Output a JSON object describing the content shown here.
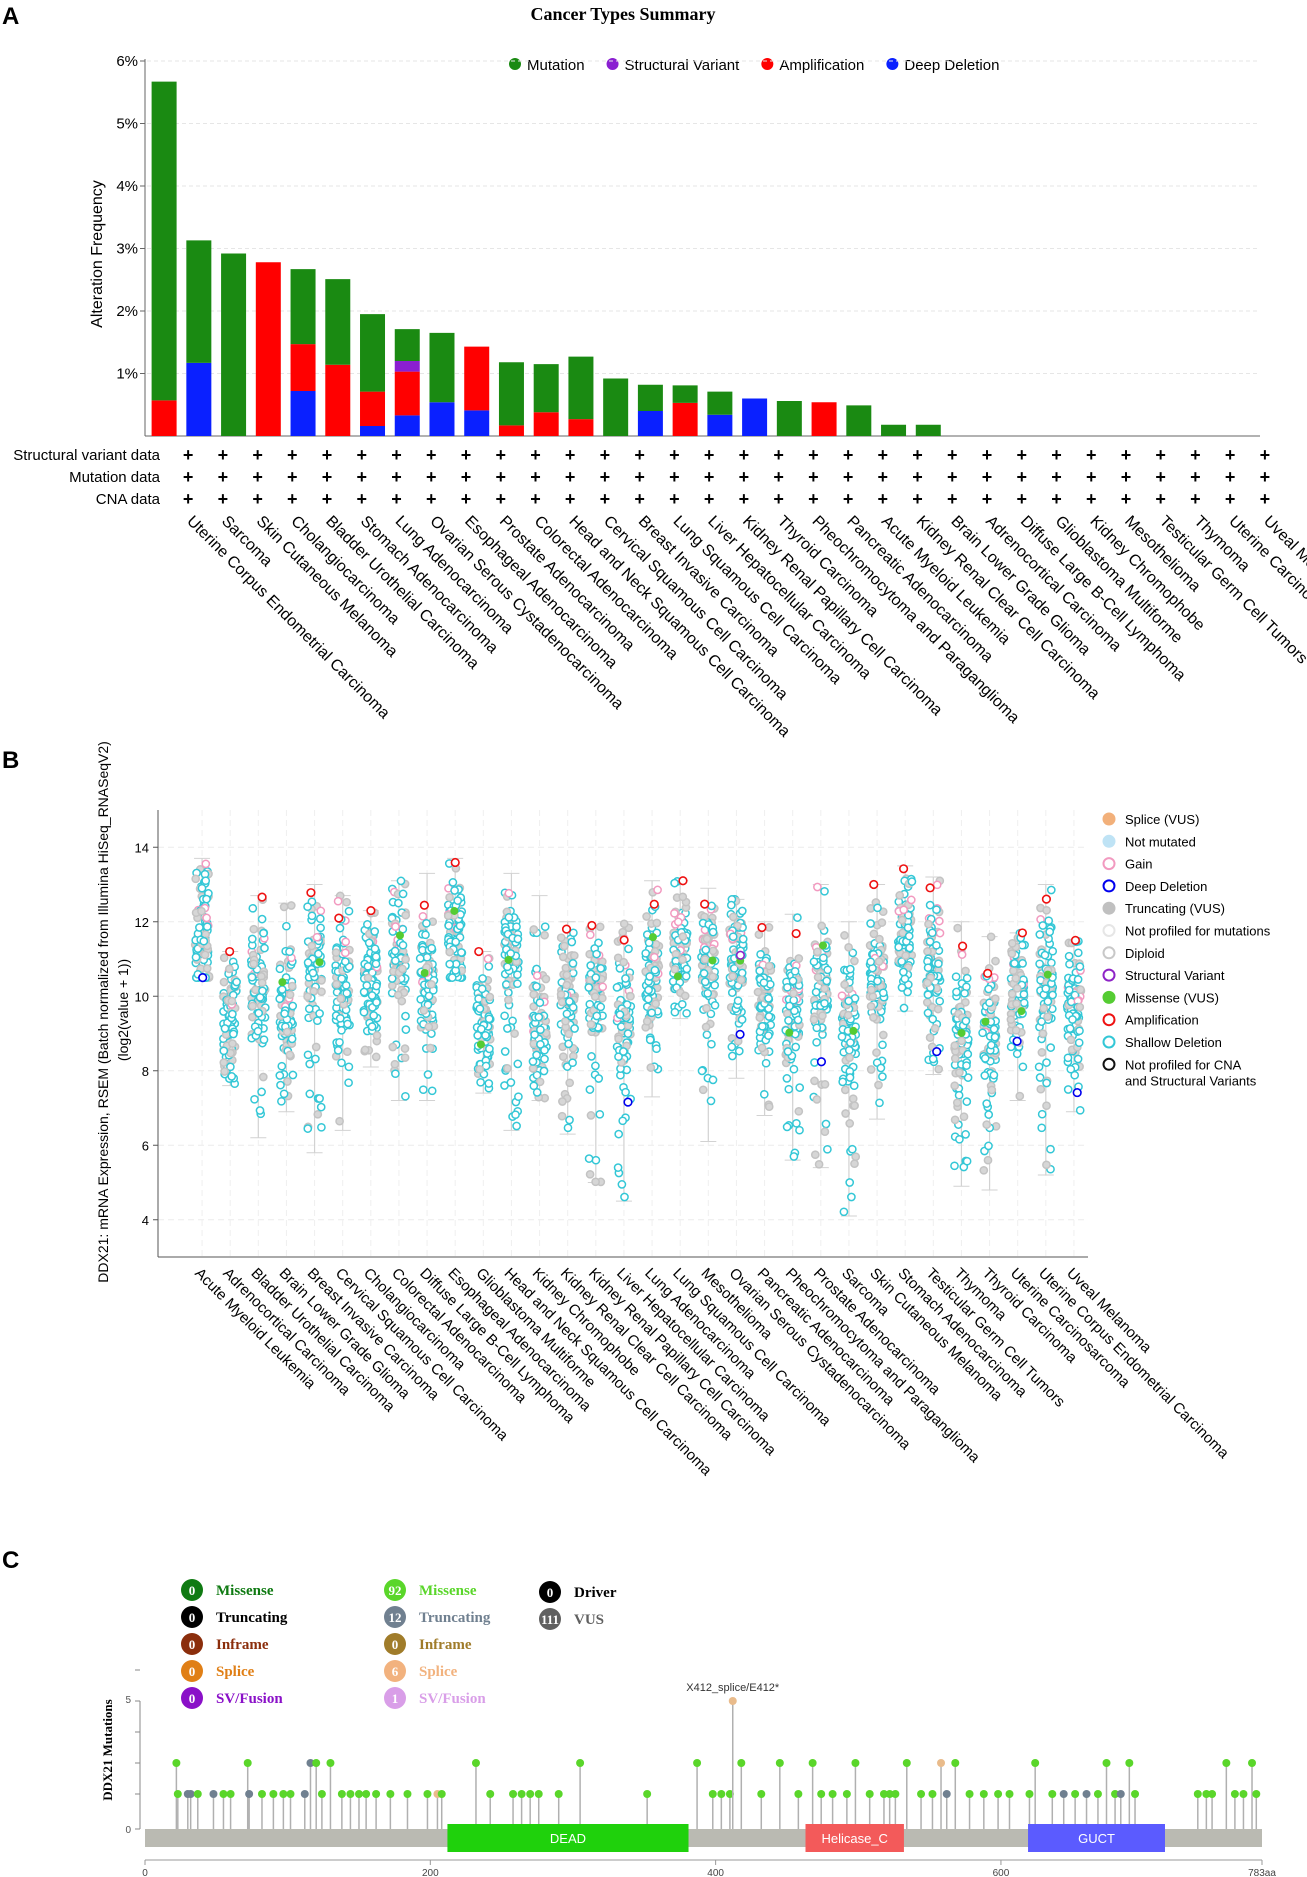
{
  "panels": {
    "a": "A",
    "b": "B",
    "c": "C"
  },
  "chart_data": [
    {
      "type": "bar",
      "title": "Cancer Types Summary",
      "ylabel": "Alteration Frequency",
      "ylim": [
        0,
        6
      ],
      "y_ticks": [
        "1%",
        "2%",
        "3%",
        "4%",
        "5%",
        "6%"
      ],
      "legend": [
        {
          "name": "Mutation",
          "color": "#1a8a12"
        },
        {
          "name": "Structural Variant",
          "color": "#8a1fd1"
        },
        {
          "name": "Amplification",
          "color": "#ff0000"
        },
        {
          "name": "Deep Deletion",
          "color": "#0a20ff"
        }
      ],
      "row_labels": [
        "Structural variant data",
        "Mutation data",
        "CNA data"
      ],
      "row_marker": "+",
      "categories": [
        "Uterine Corpus Endometrial Carcinoma",
        "Sarcoma",
        "Skin Cutaneous Melanoma",
        "Cholangiocarcinoma",
        "Bladder Urothelial Carcinoma",
        "Stomach Adenocarcinoma",
        "Lung Adenocarcinoma",
        "Ovarian Serous Cystadenocarcinoma",
        "Esophageal Adenocarcinoma",
        "Prostate Adenocarcinoma",
        "Colorectal Adenocarcinoma",
        "Head and Neck Squamous Cell Carcinoma",
        "Cervical Squamous Cell Carcinoma",
        "Breast Invasive Carcinoma",
        "Lung Squamous Cell Carcinoma",
        "Liver Hepatocellular Carcinoma",
        "Kidney Renal Papillary Cell Carcinoma",
        "Thyroid Carcinoma",
        "Pheochromocytoma and Paraganglioma",
        "Pancreatic Adenocarcinoma",
        "Acute Myeloid Leukemia",
        "Kidney Renal Clear Cell Carcinoma",
        "Brain Lower Grade Glioma",
        "Adrenocortical Carcinoma",
        "Diffuse Large B-Cell Lymphoma",
        "Glioblastoma Multiforme",
        "Kidney Chromophobe",
        "Mesothelioma",
        "Testicular Germ Cell Tumors",
        "Thymoma",
        "Uterine Carcinosarcoma",
        "Uveal Melanoma"
      ],
      "series": [
        {
          "name": "Deep Deletion",
          "values": [
            0,
            1.17,
            0,
            0,
            0.72,
            0,
            0.16,
            0.33,
            0.54,
            0.41,
            0,
            0,
            0,
            0,
            0.4,
            0,
            0.34,
            0.6,
            0,
            0,
            0,
            0,
            0,
            0,
            0,
            0,
            0,
            0,
            0,
            0,
            0,
            0
          ]
        },
        {
          "name": "Amplification",
          "values": [
            0.57,
            0,
            0,
            2.78,
            0.75,
            1.14,
            0.55,
            0.7,
            0,
            1.02,
            0.17,
            0.38,
            0.27,
            0,
            0,
            0.53,
            0,
            0,
            0,
            0.54,
            0,
            0,
            0,
            0,
            0,
            0,
            0,
            0,
            0,
            0,
            0,
            0
          ]
        },
        {
          "name": "Structural Variant",
          "values": [
            0,
            0,
            0,
            0,
            0,
            0,
            0,
            0.17,
            0,
            0,
            0,
            0,
            0,
            0,
            0,
            0,
            0,
            0,
            0,
            0,
            0,
            0,
            0,
            0,
            0,
            0,
            0,
            0,
            0,
            0,
            0,
            0
          ]
        },
        {
          "name": "Mutation",
          "values": [
            5.1,
            1.96,
            2.92,
            0,
            1.2,
            1.37,
            1.24,
            0.51,
            1.11,
            0,
            1.01,
            0.77,
            1.0,
            0.92,
            0.42,
            0.28,
            0.37,
            0,
            0.56,
            0,
            0.49,
            0.18,
            0.18,
            0,
            0,
            0,
            0,
            0,
            0,
            0,
            0,
            0
          ]
        }
      ]
    },
    {
      "type": "scatter",
      "ylabel": "DDX21: mRNA Expression, RSEM (Batch normalized from Illumina HiSeq_RNASeqV2) (log2(value + 1))",
      "ylim": [
        3,
        15
      ],
      "y_ticks": [
        4,
        6,
        8,
        10,
        12,
        14
      ],
      "categories": [
        "Acute Myeloid Leukemia",
        "Adrenocortical Carcinoma",
        "Bladder Urothelial Carcinoma",
        "Brain Lower Grade Glioma",
        "Breast Invasive Carcinoma",
        "Cervical Squamous Cell Carcinoma",
        "Cholangiocarcinoma",
        "Colorectal Adenocarcinoma",
        "Diffuse Large B-Cell Lymphoma",
        "Esophageal Adenocarcinoma",
        "Glioblastoma Multiforme",
        "Head and Neck Squamous Cell Carcinoma",
        "Kidney Chromophobe",
        "Kidney Renal Clear Cell Carcinoma",
        "Kidney Renal Papillary Cell Carcinoma",
        "Liver Hepatocellular Carcinoma",
        "Lung Adenocarcinoma",
        "Lung Squamous Cell Carcinoma",
        "Mesothelioma",
        "Ovarian Serous Cystadenocarcinoma",
        "Pancreatic Adenocarcinoma",
        "Pheochromocytoma and Paraganglioma",
        "Prostate Adenocarcinoma",
        "Sarcoma",
        "Skin Cutaneous Melanoma",
        "Stomach Adenocarcinoma",
        "Testicular Germ Cell Tumors",
        "Thymoma",
        "Thyroid Carcinoma",
        "Uterine Carcinosarcoma",
        "Uterine Corpus Endometrial Carcinoma",
        "Uveal Melanoma"
      ],
      "medians": [
        11.6,
        9.4,
        10.2,
        9.6,
        10.8,
        10.4,
        10.6,
        11.2,
        10.3,
        11.6,
        9.2,
        11.4,
        9.0,
        10.0,
        10.2,
        9.4,
        10.6,
        11.2,
        10.8,
        11.2,
        10.0,
        9.8,
        10.6,
        9.2,
        10.6,
        11.8,
        10.8,
        9.0,
        9.0,
        10.2,
        10.4,
        9.6
      ],
      "mins": [
        10.5,
        7.6,
        6.2,
        6.9,
        5.8,
        6.4,
        8.1,
        7.2,
        7.2,
        10.5,
        7.4,
        6.4,
        7.2,
        6.3,
        5.0,
        4.5,
        7.3,
        9.4,
        6.1,
        7.8,
        6.8,
        5.6,
        5.4,
        4.1,
        6.7,
        9.6,
        7.9,
        4.9,
        4.8,
        7.2,
        5.2,
        6.9
      ],
      "maxs": [
        13.7,
        11.2,
        12.7,
        12.5,
        13.0,
        12.7,
        12.3,
        13.1,
        13.3,
        13.7,
        11.2,
        13.3,
        12.7,
        12.0,
        11.9,
        12.0,
        13.1,
        13.1,
        12.9,
        12.6,
        12.0,
        12.2,
        13.0,
        12.0,
        13.0,
        13.5,
        13.2,
        12.0,
        11.6,
        11.7,
        13.0,
        11.5
      ],
      "legend": [
        {
          "name": "Splice (VUS)",
          "fill": "#f2b07a",
          "stroke": "#f2b07a"
        },
        {
          "name": "Not mutated",
          "fill": "#bfe3f5",
          "stroke": "#bfe3f5"
        },
        {
          "name": "Gain",
          "fill": "#ffffff",
          "stroke": "#f29ac0"
        },
        {
          "name": "Deep Deletion",
          "fill": "#ffffff",
          "stroke": "#0000ee"
        },
        {
          "name": "Truncating (VUS)",
          "fill": "#c0c0c0",
          "stroke": "#c0c0c0"
        },
        {
          "name": "Not profiled for mutations",
          "fill": "#ffffff",
          "stroke": "#e6e6e6"
        },
        {
          "name": "Diploid",
          "fill": "#ffffff",
          "stroke": "#c8c8c8"
        },
        {
          "name": "Structural Variant",
          "fill": "#ffffff",
          "stroke": "#8e24c6"
        },
        {
          "name": "Missense (VUS)",
          "fill": "#55cc33",
          "stroke": "#55cc33"
        },
        {
          "name": "Amplification",
          "fill": "#ffffff",
          "stroke": "#ee1111"
        },
        {
          "name": "Shallow Deletion",
          "fill": "#ffffff",
          "stroke": "#33c7d6"
        },
        {
          "name": "Not profiled for CNA",
          "name2": "and Structural Variants",
          "fill": "#ffffff",
          "stroke": "#111111"
        }
      ]
    },
    {
      "type": "lollipop",
      "ylabel": "DDX21 Mutations",
      "x_ticks": [
        0,
        200,
        400,
        600
      ],
      "x_end_label": "783aa",
      "protein_length": 783,
      "hotspot_label": "X412_splice/E412*",
      "legend_driver": [
        {
          "count": "0",
          "label": "Missense",
          "color": "#0f7a12"
        },
        {
          "count": "0",
          "label": "Truncating",
          "color": "#000000"
        },
        {
          "count": "0",
          "label": "Inframe",
          "color": "#8b2e0c"
        },
        {
          "count": "0",
          "label": "Splice",
          "color": "#e07f16"
        },
        {
          "count": "0",
          "label": "SV/Fusion",
          "color": "#8a10c8"
        }
      ],
      "legend_vus": [
        {
          "count": "92",
          "label": "Missense",
          "color": "#5ad62a"
        },
        {
          "count": "12",
          "label": "Truncating",
          "color": "#708090"
        },
        {
          "count": "0",
          "label": "Inframe",
          "color": "#a07c2a"
        },
        {
          "count": "6",
          "label": "Splice",
          "color": "#f2b27e"
        },
        {
          "count": "1",
          "label": "SV/Fusion",
          "color": "#d99ee8"
        }
      ],
      "legend_class": [
        {
          "count": "0",
          "label": "Driver",
          "color": "#000000"
        },
        {
          "count": "111",
          "label": "VUS",
          "color": "#606060"
        }
      ],
      "domains": [
        {
          "name": "DEAD",
          "start": 212,
          "end": 381,
          "color": "#1fd10c"
        },
        {
          "name": "Helicase_C",
          "start": 463,
          "end": 532,
          "color": "#f35a5a"
        },
        {
          "name": "GUCT",
          "start": 619,
          "end": 715,
          "color": "#5b5bff"
        }
      ],
      "mutations": [
        {
          "pos": 22,
          "count": 2,
          "type": "missense"
        },
        {
          "pos": 23,
          "count": 1,
          "type": "missense"
        },
        {
          "pos": 30,
          "count": 1,
          "type": "truncating"
        },
        {
          "pos": 32,
          "count": 1,
          "type": "truncating"
        },
        {
          "pos": 37,
          "count": 1,
          "type": "missense"
        },
        {
          "pos": 48,
          "count": 1,
          "type": "truncating"
        },
        {
          "pos": 55,
          "count": 1,
          "type": "missense"
        },
        {
          "pos": 60,
          "count": 1,
          "type": "missense"
        },
        {
          "pos": 72,
          "count": 2,
          "type": "missense"
        },
        {
          "pos": 73,
          "count": 1,
          "type": "truncating"
        },
        {
          "pos": 82,
          "count": 1,
          "type": "missense"
        },
        {
          "pos": 90,
          "count": 1,
          "type": "missense"
        },
        {
          "pos": 97,
          "count": 1,
          "type": "missense"
        },
        {
          "pos": 102,
          "count": 1,
          "type": "missense"
        },
        {
          "pos": 112,
          "count": 1,
          "type": "truncating"
        },
        {
          "pos": 116,
          "count": 2,
          "type": "truncating"
        },
        {
          "pos": 120,
          "count": 2,
          "type": "missense"
        },
        {
          "pos": 124,
          "count": 1,
          "type": "missense"
        },
        {
          "pos": 130,
          "count": 2,
          "type": "missense"
        },
        {
          "pos": 138,
          "count": 1,
          "type": "missense"
        },
        {
          "pos": 144,
          "count": 1,
          "type": "missense"
        },
        {
          "pos": 150,
          "count": 1,
          "type": "missense"
        },
        {
          "pos": 155,
          "count": 1,
          "type": "missense"
        },
        {
          "pos": 162,
          "count": 1,
          "type": "missense"
        },
        {
          "pos": 172,
          "count": 1,
          "type": "missense"
        },
        {
          "pos": 184,
          "count": 1,
          "type": "missense"
        },
        {
          "pos": 198,
          "count": 1,
          "type": "missense"
        },
        {
          "pos": 205,
          "count": 1,
          "type": "splice"
        },
        {
          "pos": 208,
          "count": 1,
          "type": "missense"
        },
        {
          "pos": 232,
          "count": 2,
          "type": "missense"
        },
        {
          "pos": 242,
          "count": 1,
          "type": "missense"
        },
        {
          "pos": 258,
          "count": 1,
          "type": "missense"
        },
        {
          "pos": 264,
          "count": 1,
          "type": "missense"
        },
        {
          "pos": 270,
          "count": 1,
          "type": "missense"
        },
        {
          "pos": 276,
          "count": 1,
          "type": "missense"
        },
        {
          "pos": 290,
          "count": 1,
          "type": "missense"
        },
        {
          "pos": 305,
          "count": 2,
          "type": "missense"
        },
        {
          "pos": 352,
          "count": 1,
          "type": "missense"
        },
        {
          "pos": 387,
          "count": 2,
          "type": "missense"
        },
        {
          "pos": 398,
          "count": 1,
          "type": "missense"
        },
        {
          "pos": 404,
          "count": 1,
          "type": "missense"
        },
        {
          "pos": 410,
          "count": 1,
          "type": "missense"
        },
        {
          "pos": 412,
          "count": 4,
          "type": "splice"
        },
        {
          "pos": 418,
          "count": 2,
          "type": "missense"
        },
        {
          "pos": 432,
          "count": 1,
          "type": "missense"
        },
        {
          "pos": 445,
          "count": 2,
          "type": "missense"
        },
        {
          "pos": 458,
          "count": 1,
          "type": "missense"
        },
        {
          "pos": 468,
          "count": 2,
          "type": "missense"
        },
        {
          "pos": 474,
          "count": 1,
          "type": "missense"
        },
        {
          "pos": 482,
          "count": 1,
          "type": "missense"
        },
        {
          "pos": 492,
          "count": 1,
          "type": "missense"
        },
        {
          "pos": 498,
          "count": 2,
          "type": "missense"
        },
        {
          "pos": 508,
          "count": 1,
          "type": "missense"
        },
        {
          "pos": 518,
          "count": 1,
          "type": "missense"
        },
        {
          "pos": 522,
          "count": 1,
          "type": "missense"
        },
        {
          "pos": 526,
          "count": 1,
          "type": "missense"
        },
        {
          "pos": 534,
          "count": 2,
          "type": "missense"
        },
        {
          "pos": 544,
          "count": 1,
          "type": "missense"
        },
        {
          "pos": 552,
          "count": 1,
          "type": "missense"
        },
        {
          "pos": 558,
          "count": 2,
          "type": "splice"
        },
        {
          "pos": 562,
          "count": 1,
          "type": "truncating"
        },
        {
          "pos": 568,
          "count": 2,
          "type": "missense"
        },
        {
          "pos": 578,
          "count": 1,
          "type": "missense"
        },
        {
          "pos": 588,
          "count": 1,
          "type": "missense"
        },
        {
          "pos": 598,
          "count": 1,
          "type": "missense"
        },
        {
          "pos": 606,
          "count": 1,
          "type": "missense"
        },
        {
          "pos": 620,
          "count": 1,
          "type": "missense"
        },
        {
          "pos": 624,
          "count": 2,
          "type": "missense"
        },
        {
          "pos": 636,
          "count": 1,
          "type": "missense"
        },
        {
          "pos": 644,
          "count": 1,
          "type": "truncating"
        },
        {
          "pos": 652,
          "count": 1,
          "type": "missense"
        },
        {
          "pos": 660,
          "count": 1,
          "type": "truncating"
        },
        {
          "pos": 668,
          "count": 1,
          "type": "missense"
        },
        {
          "pos": 674,
          "count": 2,
          "type": "missense"
        },
        {
          "pos": 680,
          "count": 1,
          "type": "missense"
        },
        {
          "pos": 684,
          "count": 1,
          "type": "truncating"
        },
        {
          "pos": 690,
          "count": 2,
          "type": "missense"
        },
        {
          "pos": 694,
          "count": 1,
          "type": "missense"
        },
        {
          "pos": 738,
          "count": 1,
          "type": "missense"
        },
        {
          "pos": 744,
          "count": 1,
          "type": "missense"
        },
        {
          "pos": 748,
          "count": 1,
          "type": "missense"
        },
        {
          "pos": 758,
          "count": 2,
          "type": "missense"
        },
        {
          "pos": 764,
          "count": 1,
          "type": "missense"
        },
        {
          "pos": 770,
          "count": 1,
          "type": "missense"
        },
        {
          "pos": 776,
          "count": 2,
          "type": "missense"
        },
        {
          "pos": 779,
          "count": 1,
          "type": "missense"
        }
      ]
    }
  ]
}
